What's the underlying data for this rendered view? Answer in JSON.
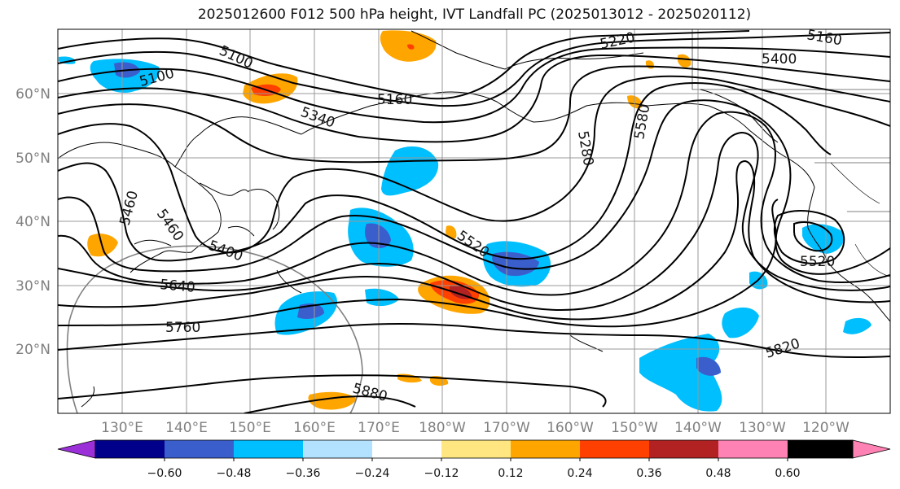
{
  "title": "2025012600 F012 500 hPa height, IVT Landfall PC (2025013012 - 2025020112)",
  "map": {
    "latitude_labels": [
      "60°N",
      "50°N",
      "40°N",
      "30°N",
      "20°N"
    ],
    "longitude_labels": [
      "130°E",
      "140°E",
      "150°E",
      "160°E",
      "170°E",
      "180°W",
      "170°W",
      "160°W",
      "150°W",
      "140°W",
      "130°W",
      "120°W"
    ],
    "contour_labels": [
      "5100",
      "5100",
      "5160",
      "5220",
      "5160",
      "5400",
      "5340",
      "5280",
      "5580",
      "5460",
      "5460",
      "5400",
      "5640",
      "5760",
      "5520",
      "5520",
      "5880",
      "5820"
    ],
    "contour_color": "#000000",
    "grid_color": "#999999"
  },
  "colorbar": {
    "tick_labels": [
      "−0.60",
      "−0.48",
      "−0.36",
      "−0.24",
      "−0.12",
      "0.12",
      "0.24",
      "0.36",
      "0.48",
      "0.60"
    ],
    "colors": [
      "#9b30d9",
      "#00008b",
      "#3a5fcd",
      "#00bfff",
      "#b2e2ff",
      "#ffffff",
      "#ffe680",
      "#ffa500",
      "#ff4000",
      "#b22222",
      "#ff82b4"
    ]
  }
}
